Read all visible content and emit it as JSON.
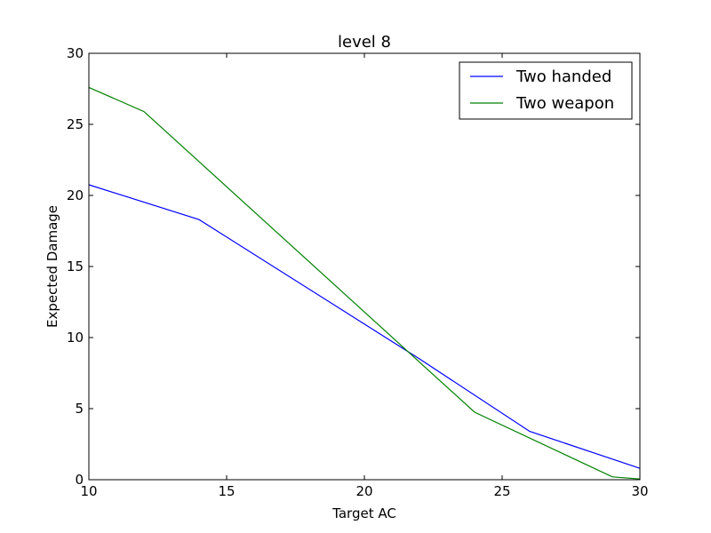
{
  "chart_data": {
    "type": "line",
    "title": "level 8",
    "xlabel": "Target AC",
    "ylabel": "Expected Damage",
    "xlim": [
      10,
      30
    ],
    "ylim": [
      0,
      30
    ],
    "xticks": [
      10,
      15,
      20,
      25,
      30
    ],
    "yticks": [
      0,
      5,
      10,
      15,
      20,
      25,
      30
    ],
    "grid": false,
    "legend_position": "top-right",
    "series": [
      {
        "name": "Two handed",
        "color": "#0000ff",
        "x": [
          10,
          14,
          22,
          26,
          30
        ],
        "y": [
          20.75,
          18.3,
          8.5,
          3.4,
          0.8
        ]
      },
      {
        "name": "Two weapon",
        "color": "#008000",
        "x": [
          10,
          12,
          20,
          24,
          29,
          30
        ],
        "y": [
          27.6,
          25.9,
          11.8,
          4.75,
          0.2,
          0.05
        ]
      }
    ]
  }
}
